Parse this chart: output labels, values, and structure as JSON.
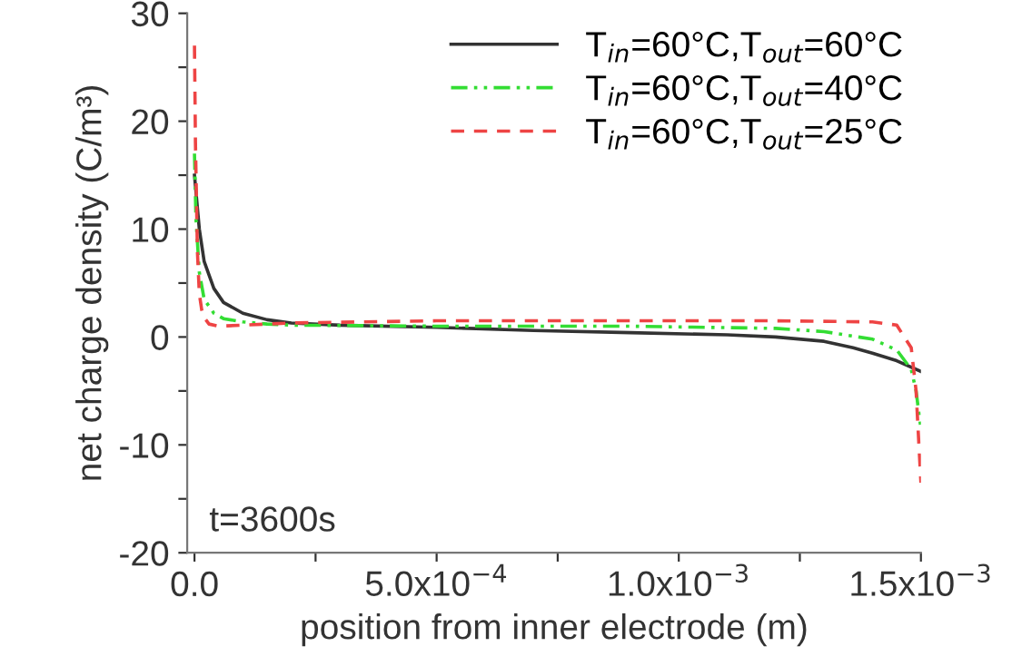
{
  "chart_data": {
    "type": "line",
    "xlabel": "position from inner electrode (m)",
    "ylabel": "net charge density (C/m³)",
    "xlim": [
      -1.5e-05,
      0.0015
    ],
    "ylim": [
      -20,
      30
    ],
    "xticks": [
      {
        "value": 0,
        "label": "0.0"
      },
      {
        "value": 0.00025,
        "label": null
      },
      {
        "value": 0.0005,
        "label": "5.0x10$^{−4}$"
      },
      {
        "value": 0.00075,
        "label": null
      },
      {
        "value": 0.001,
        "label": "1.0x10$^{−3}$"
      },
      {
        "value": 0.00125,
        "label": null
      },
      {
        "value": 0.0015,
        "label": "1.5x10$^{−3}$"
      }
    ],
    "yticks": [
      -20,
      {
        "value": -15,
        "label": null
      },
      -10,
      {
        "value": -5,
        "label": null
      },
      0,
      {
        "value": 5,
        "label": null
      },
      10,
      {
        "value": 15,
        "label": null
      },
      20,
      {
        "value": 25,
        "label": null
      },
      30
    ],
    "annotations": [
      "t=3600s"
    ],
    "legend": "top right",
    "grid": false,
    "series": [
      {
        "name": "T$_{in}$=60°C,T$_{out}$=60°C",
        "color": "#333333",
        "line_style": "solid",
        "x": [
          0,
          1e-05,
          2e-05,
          4e-05,
          6e-05,
          0.0001,
          0.00015,
          0.0002,
          0.0003,
          0.0005,
          0.0007,
          0.0009,
          0.0011,
          0.0012,
          0.0013,
          0.00136,
          0.0014,
          0.00145,
          0.0015
        ],
        "values": [
          15,
          10,
          7,
          4.5,
          3.2,
          2.2,
          1.6,
          1.3,
          1.1,
          0.9,
          0.6,
          0.4,
          0.2,
          0,
          -0.4,
          -1,
          -1.5,
          -2.2,
          -3.2
        ]
      },
      {
        "name": "T$_{in}$=60°C,T$_{out}$=40°C",
        "color": "#33dd33",
        "line_style": "dashdot",
        "x": [
          0,
          3e-06,
          1e-05,
          2e-05,
          4e-05,
          6e-05,
          0.0001,
          0.00015,
          0.0002,
          0.0005,
          0.0009,
          0.0012,
          0.0013,
          0.0014,
          0.00145,
          0.00148,
          0.00149,
          0.0015
        ],
        "values": [
          17,
          11,
          6,
          3.5,
          2.2,
          1.7,
          1.4,
          1.2,
          1.1,
          1,
          1,
          0.8,
          0.5,
          -0.2,
          -1.2,
          -3,
          -5,
          -8.5
        ]
      },
      {
        "name": "T$_{in}$=60°C,T$_{out}$=25°C",
        "color": "#ee4444",
        "line_style": "dashed",
        "x": [
          0,
          2e-06,
          6e-06,
          1e-05,
          1.5e-05,
          2e-05,
          3e-05,
          5e-05,
          0.0001,
          0.0002,
          0.0005,
          0.0009,
          0.0012,
          0.0014,
          0.00145,
          0.00148,
          0.00149,
          0.0015
        ],
        "values": [
          27,
          18,
          8,
          4,
          2.5,
          1.8,
          1.2,
          1,
          1.1,
          1.3,
          1.5,
          1.5,
          1.5,
          1.4,
          1.1,
          -1,
          -5,
          -13.5
        ]
      }
    ]
  }
}
